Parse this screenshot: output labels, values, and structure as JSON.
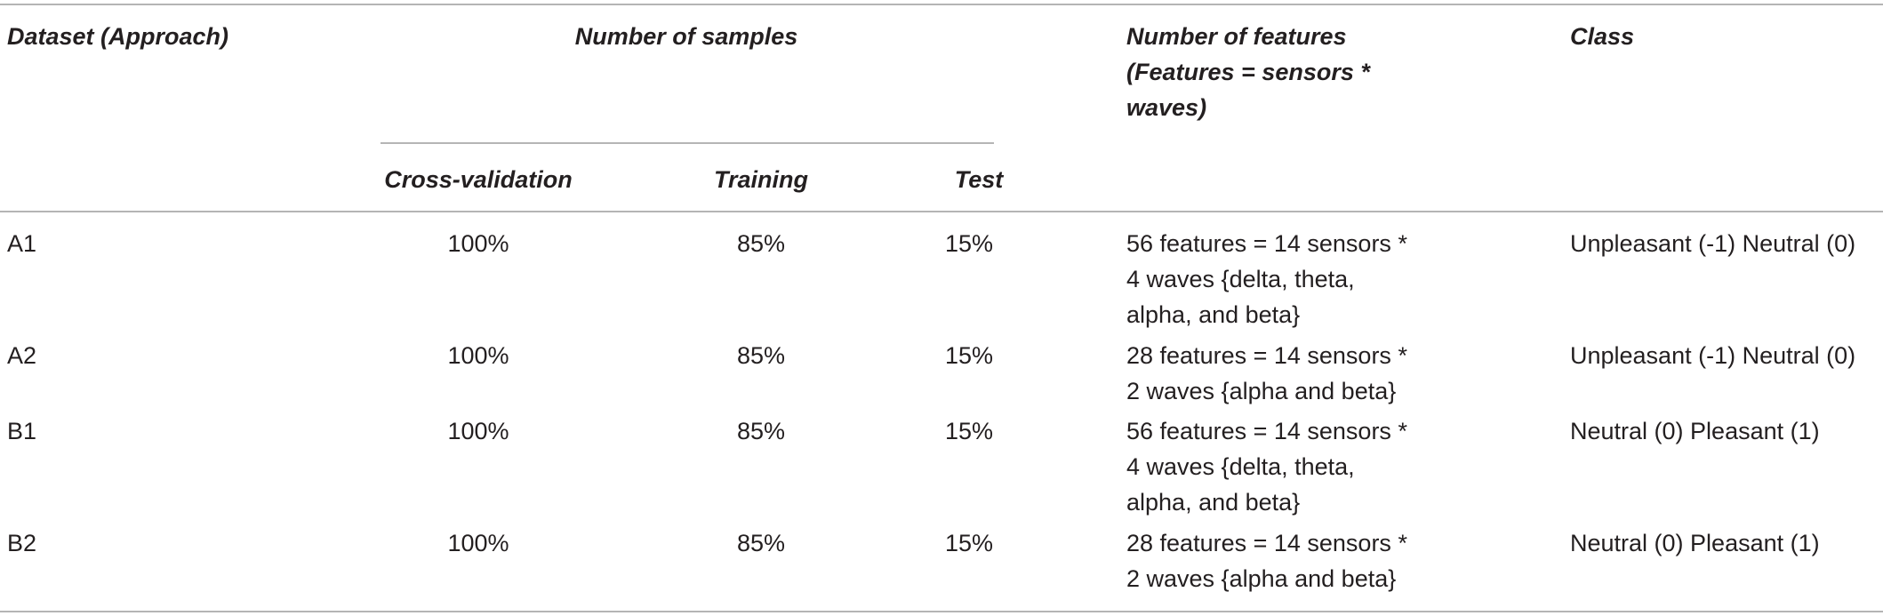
{
  "header": {
    "dataset": "Dataset (Approach)",
    "samples": "Number of samples",
    "features": [
      "Number of features",
      "(Features = sensors *",
      "waves)"
    ],
    "class": "Class",
    "sub": {
      "cross_validation": "Cross-validation",
      "training": "Training",
      "test": "Test"
    }
  },
  "rows": [
    {
      "dataset": "A1",
      "cross_validation": "100%",
      "training": "85%",
      "test": "15%",
      "features": [
        "56 features = 14 sensors *",
        "4 waves {delta, theta,",
        "alpha, and beta}"
      ],
      "class": "Unpleasant (-1) Neutral (0)"
    },
    {
      "dataset": "A2",
      "cross_validation": "100%",
      "training": "85%",
      "test": "15%",
      "features": [
        "28 features = 14 sensors *",
        "2 waves {alpha and beta}"
      ],
      "class": "Unpleasant (-1) Neutral (0)"
    },
    {
      "dataset": "B1",
      "cross_validation": "100%",
      "training": "85%",
      "test": "15%",
      "features": [
        "56 features = 14 sensors *",
        "4 waves {delta, theta,",
        "alpha, and beta}"
      ],
      "class": "Neutral (0) Pleasant (1)"
    },
    {
      "dataset": "B2",
      "cross_validation": "100%",
      "training": "85%",
      "test": "15%",
      "features": [
        "28 features = 14 sensors *",
        "2 waves {alpha and beta}"
      ],
      "class": "Neutral (0) Pleasant (1)"
    }
  ]
}
